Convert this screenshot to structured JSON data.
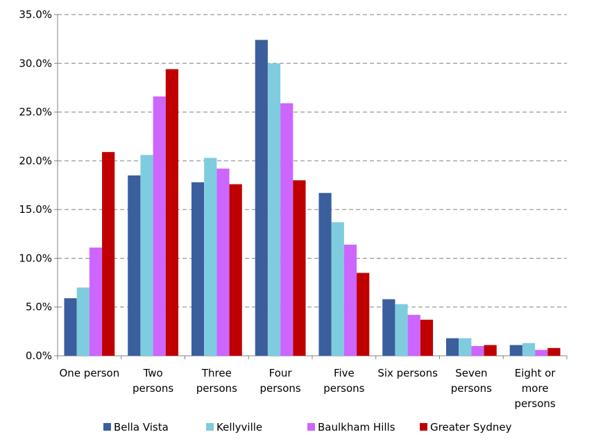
{
  "chart_data": {
    "type": "bar",
    "title": "",
    "xlabel": "",
    "ylabel": "",
    "ylim": [
      0,
      35
    ],
    "y_ticks": [
      "0.0%",
      "5.0%",
      "10.0%",
      "15.0%",
      "20.0%",
      "25.0%",
      "30.0%",
      "35.0%"
    ],
    "grid": "horizontal dashed",
    "legend_position": "bottom",
    "categories": [
      [
        "One person"
      ],
      [
        "Two",
        "persons"
      ],
      [
        "Three",
        "persons"
      ],
      [
        "Four",
        "persons"
      ],
      [
        "Five",
        "persons"
      ],
      [
        "Six persons"
      ],
      [
        "Seven",
        "persons"
      ],
      [
        "Eight or",
        "more",
        "persons"
      ]
    ],
    "series": [
      {
        "name": "Bella Vista",
        "color": "#3A5F9C",
        "values": [
          5.9,
          18.5,
          17.8,
          32.4,
          16.7,
          5.8,
          1.8,
          1.1
        ]
      },
      {
        "name": "Kellyville",
        "color": "#7FCCDF",
        "values": [
          7.0,
          20.6,
          20.3,
          30.0,
          13.7,
          5.3,
          1.8,
          1.3
        ]
      },
      {
        "name": "Baulkham Hills",
        "color": "#CC66FF",
        "values": [
          11.1,
          26.6,
          19.2,
          25.9,
          11.4,
          4.2,
          1.0,
          0.6
        ]
      },
      {
        "name": "Greater Sydney",
        "color": "#C00000",
        "values": [
          20.9,
          29.4,
          17.6,
          18.0,
          8.5,
          3.7,
          1.1,
          0.8
        ]
      }
    ]
  }
}
